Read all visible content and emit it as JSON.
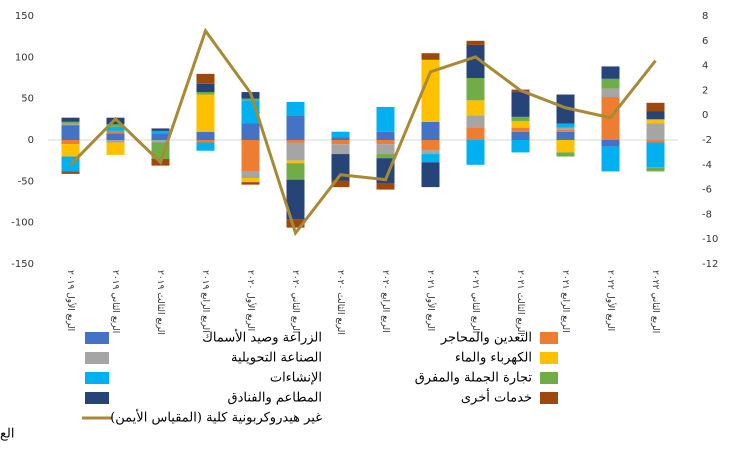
{
  "chart_data": {
    "type": "bar",
    "stacked": true,
    "categories": [
      "الربع الأول ٢٠١٩",
      "الربع الثاني ٢٠١٩",
      "الربع الثالث ٢٠١٩",
      "الربع الرابع ٢٠١٩",
      "الربع الأول ٢٠٢٠",
      "الربع الثاني ٢٠٢٠",
      "الربع الثالث ٢٠٢٠",
      "الربع الرابع ٢٠٢٠",
      "الربع الأول ٢٠٢١",
      "الربع الثاني ٢٠٢١",
      "الربع الثالث ٢٠٢١",
      "الربع الرابع ٢٠٢١",
      "الربع الأول ٢٠٢٢",
      "الربع الثاني ٢٠٢٢"
    ],
    "series": [
      {
        "name": "الزراعة وصيد الأسماك",
        "color": "#4472c4",
        "values": [
          18,
          8,
          8,
          10,
          20,
          30,
          3,
          10,
          22,
          0,
          10,
          10,
          -8,
          0
        ]
      },
      {
        "name": "التعدين والمحاجر",
        "color": "#ed7d31",
        "values": [
          -5,
          3,
          0,
          -3,
          -38,
          -3,
          -5,
          -5,
          -12,
          15,
          5,
          3,
          52,
          -3
        ]
      },
      {
        "name": "الصناعة التحويلية",
        "color": "#a5a5a5",
        "values": [
          2,
          -3,
          -3,
          0,
          -8,
          -22,
          -12,
          -12,
          -5,
          15,
          0,
          2,
          10,
          20
        ]
      },
      {
        "name": "الكهرباء والماء",
        "color": "#ffc000",
        "values": [
          -15,
          -15,
          0,
          45,
          -5,
          -3,
          0,
          0,
          75,
          18,
          8,
          -15,
          0,
          5
        ]
      },
      {
        "name": "الإنشاءات",
        "color": "#00b0f0",
        "values": [
          -18,
          5,
          3,
          -10,
          28,
          16,
          7,
          30,
          -10,
          -30,
          -15,
          5,
          -30,
          -30
        ]
      },
      {
        "name": "تجارة الجملة والمفرق",
        "color": "#70ad47",
        "values": [
          2,
          3,
          -20,
          3,
          2,
          -20,
          0,
          -5,
          0,
          27,
          5,
          -5,
          12,
          -5
        ]
      },
      {
        "name": "المطاعم والفنادق",
        "color": "#264478",
        "values": [
          5,
          8,
          3,
          10,
          8,
          -48,
          -32,
          -30,
          -30,
          40,
          30,
          35,
          15,
          10
        ]
      },
      {
        "name": "خدمات أخرى",
        "color": "#9e480e",
        "values": [
          -3,
          0,
          -8,
          12,
          -3,
          -10,
          -8,
          -8,
          8,
          5,
          3,
          0,
          0,
          10
        ]
      },
      {
        "name": "غير هيدروكربونية كلية (المقياس الأيمن)",
        "color": "#a88a34",
        "axis": "y2",
        "type": "line",
        "values": [
          -4,
          -0.3,
          -3.8,
          6.8,
          1.8,
          -9.5,
          -4.8,
          -5.2,
          3.5,
          4.7,
          2,
          0.6,
          -0.2,
          4.4
        ]
      }
    ],
    "ylim": [
      -150,
      150
    ],
    "yticks": [
      -150,
      -100,
      -50,
      0,
      50,
      100,
      150
    ],
    "y2lim": [
      -12,
      8
    ],
    "y2ticks": [
      -12,
      -10,
      -8,
      -6,
      -4,
      -2,
      0,
      2,
      4,
      6,
      8
    ],
    "note": "الع"
  }
}
